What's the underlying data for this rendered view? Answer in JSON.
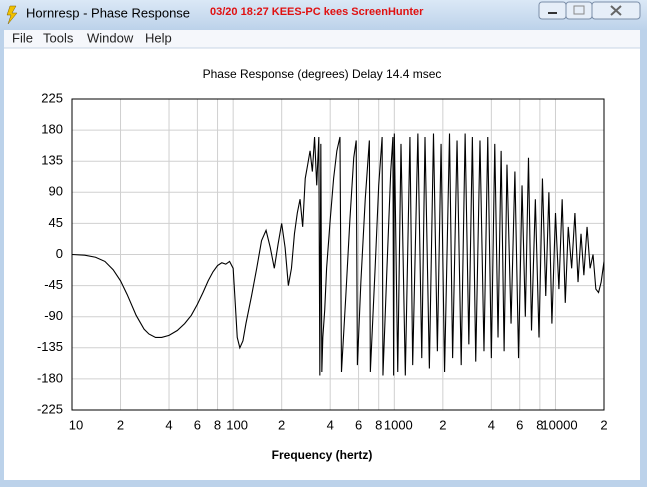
{
  "window": {
    "title": "Hornresp - Phase Response",
    "overlay": "03/20 18:27  KEES-PC  kees  ScreenHunter"
  },
  "menu": [
    "File",
    "Tools",
    "Window",
    "Help"
  ],
  "chart_data": {
    "type": "line",
    "title": "Phase Response (degrees)   Delay 14.4 msec",
    "xlabel": "Frequency (hertz)",
    "xscale": "log",
    "xlim": [
      10,
      20000
    ],
    "ylim": [
      -225,
      225
    ],
    "grid": true,
    "color": "#000000",
    "xticks": [
      10,
      {
        "value": 20,
        "label": "2"
      },
      {
        "value": 40,
        "label": "4"
      },
      {
        "value": 60,
        "label": "6"
      },
      {
        "value": 80,
        "label": "8"
      },
      100,
      {
        "value": 200,
        "label": "2"
      },
      {
        "value": 400,
        "label": "4"
      },
      {
        "value": 600,
        "label": "6"
      },
      {
        "value": 800,
        "label": "8"
      },
      1000,
      {
        "value": 2000,
        "label": "2"
      },
      {
        "value": 4000,
        "label": "4"
      },
      {
        "value": 6000,
        "label": "6"
      },
      {
        "value": 8000,
        "label": "8"
      },
      10000,
      {
        "value": 20000,
        "label": "2"
      }
    ],
    "yticks": [
      225,
      180,
      135,
      90,
      45,
      0,
      -45,
      -90,
      -135,
      -180,
      -225
    ],
    "x": [
      10,
      12,
      14,
      16,
      18,
      20,
      22,
      25,
      28,
      30,
      33,
      36,
      40,
      45,
      50,
      55,
      60,
      65,
      70,
      75,
      80,
      85,
      90,
      95,
      100,
      103,
      106,
      110,
      115,
      120,
      130,
      140,
      150,
      160,
      170,
      180,
      190,
      200,
      210,
      220,
      230,
      240,
      250,
      260,
      270,
      280,
      290,
      300,
      310,
      320,
      330,
      340,
      345,
      350,
      355,
      360,
      370,
      380,
      400,
      420,
      440,
      460,
      470,
      500,
      530,
      560,
      580,
      590,
      620,
      660,
      700,
      710,
      760,
      800,
      840,
      850,
      900,
      950,
      980,
      990,
      1000,
      1050,
      1100,
      1170,
      1250,
      1300,
      1400,
      1480,
      1550,
      1650,
      1750,
      1850,
      1950,
      2050,
      2200,
      2300,
      2450,
      2600,
      2750,
      2900,
      3050,
      3200,
      3400,
      3600,
      3800,
      4000,
      4200,
      4400,
      4600,
      4800,
      5000,
      5300,
      5600,
      5900,
      6200,
      6500,
      6800,
      7100,
      7500,
      7900,
      8300,
      8700,
      9100,
      9500,
      10000,
      10500,
      11000,
      11500,
      12000,
      12600,
      13200,
      13800,
      14400,
      15000,
      15700,
      16400,
      17100,
      17800,
      18500,
      19200,
      20000
    ],
    "values": [
      0,
      -1,
      -4,
      -10,
      -22,
      -38,
      -58,
      -88,
      -108,
      -115,
      -120,
      -120,
      -117,
      -110,
      -100,
      -88,
      -72,
      -55,
      -38,
      -25,
      -16,
      -12,
      -14,
      -10,
      -20,
      -70,
      -120,
      -135,
      -125,
      -100,
      -60,
      -20,
      20,
      35,
      10,
      -20,
      15,
      45,
      10,
      -45,
      -20,
      30,
      60,
      80,
      40,
      110,
      130,
      150,
      120,
      170,
      100,
      170,
      -175,
      160,
      -170,
      -120,
      -80,
      -20,
      50,
      110,
      150,
      170,
      -170,
      -60,
      50,
      140,
      165,
      -160,
      -40,
      80,
      165,
      -170,
      -20,
      100,
      170,
      -175,
      -20,
      120,
      170,
      -175,
      175,
      -170,
      160,
      -175,
      170,
      -160,
      175,
      -150,
      170,
      -165,
      175,
      -140,
      160,
      -170,
      175,
      -150,
      165,
      -160,
      175,
      -130,
      170,
      -155,
      165,
      -140,
      170,
      -150,
      160,
      -120,
      150,
      -140,
      130,
      -100,
      120,
      -150,
      100,
      -90,
      140,
      -110,
      80,
      -120,
      110,
      -60,
      90,
      -100,
      60,
      -50,
      80,
      -70,
      40,
      -20,
      60,
      -40,
      30,
      -30,
      40,
      -20,
      0,
      -50,
      -55,
      -40,
      -10
    ]
  }
}
